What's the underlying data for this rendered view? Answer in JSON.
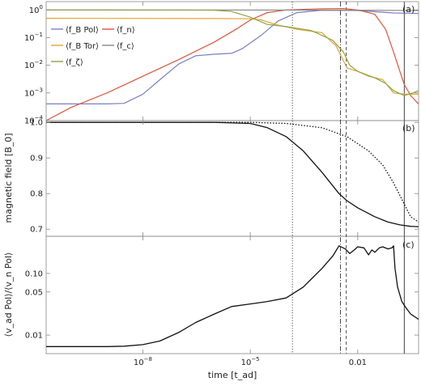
{
  "chart_data": {
    "type": "line",
    "xlabel": "time [t_ad]",
    "xscale": "log",
    "xlim": [
      2e-11,
      0.5
    ],
    "x_ticks": [
      {
        "value": 1e-08,
        "label": "10^-8"
      },
      {
        "value": 1e-05,
        "label": "10^-5"
      },
      {
        "value": 0.01,
        "label": "0.01"
      }
    ],
    "vertical_lines": [
      {
        "x": 0.00015,
        "style": "dotted"
      },
      {
        "x": 0.0033,
        "style": "dashdot"
      },
      {
        "x": 0.0048,
        "style": "dashed"
      },
      {
        "x": 0.2,
        "style": "solid"
      }
    ],
    "panels": [
      {
        "tag": "(a)",
        "ylabel": "",
        "yscale": "log",
        "ylim": [
          0.0001,
          2
        ],
        "y_ticks": [
          {
            "value": 1,
            "label": "10^0"
          },
          {
            "value": 0.1,
            "label": "10^-1"
          },
          {
            "value": 0.01,
            "label": "10^-2"
          },
          {
            "value": 0.001,
            "label": "10^-3"
          },
          {
            "value": 0.0001,
            "label": "10^-4"
          }
        ],
        "legend": [
          {
            "label": "⟨f_B Pol⟩",
            "color": "#7a7fc4"
          },
          {
            "label": "⟨f_n⟩",
            "color": "#e0563b"
          },
          {
            "label": "⟨f_B Tor⟩",
            "color": "#e3a435"
          },
          {
            "label": "⟨f_c⟩",
            "color": "#888888"
          },
          {
            "label": "⟨f_ζ⟩",
            "color": "#8aa646"
          }
        ],
        "series": [
          {
            "name": "⟨f_B Pol⟩",
            "color": "#7a7fc4",
            "points": [
              [
                2e-11,
                0.0004
              ],
              [
                1e-09,
                0.0004
              ],
              [
                3e-09,
                0.00042
              ],
              [
                1e-08,
                0.0009
              ],
              [
                3e-08,
                0.003
              ],
              [
                1e-07,
                0.011
              ],
              [
                3e-07,
                0.022
              ],
              [
                1e-06,
                0.025
              ],
              [
                3e-06,
                0.027
              ],
              [
                6e-06,
                0.04
              ],
              [
                2e-05,
                0.12
              ],
              [
                6e-05,
                0.4
              ],
              [
                0.0002,
                0.8
              ],
              [
                0.001,
                0.97
              ],
              [
                0.01,
                0.95
              ],
              [
                0.1,
                0.78
              ],
              [
                0.5,
                0.75
              ]
            ]
          },
          {
            "name": "⟨f_n⟩",
            "color": "#e0563b",
            "points": [
              [
                2e-11,
                0.0001
              ],
              [
                1e-10,
                0.0003
              ],
              [
                1e-09,
                0.001
              ],
              [
                1e-08,
                0.004
              ],
              [
                1e-07,
                0.016
              ],
              [
                1e-06,
                0.07
              ],
              [
                4e-06,
                0.2
              ],
              [
                1e-05,
                0.43
              ],
              [
                3e-05,
                0.8
              ],
              [
                0.0001,
                1.0
              ],
              [
                0.001,
                1.1
              ],
              [
                0.004,
                1.12
              ],
              [
                0.01,
                1.0
              ],
              [
                0.03,
                0.7
              ],
              [
                0.06,
                0.2
              ],
              [
                0.1,
                0.03
              ],
              [
                0.15,
                0.006
              ],
              [
                0.2,
                0.002
              ],
              [
                0.3,
                0.0008
              ],
              [
                0.5,
                0.0004
              ]
            ]
          },
          {
            "name": "⟨f_B Tor⟩",
            "color": "#e3a435",
            "points": [
              [
                2e-11,
                0.5
              ],
              [
                1e-06,
                0.49
              ],
              [
                1e-05,
                0.48
              ],
              [
                2e-05,
                0.44
              ],
              [
                5e-05,
                0.3
              ],
              [
                0.0002,
                0.2
              ],
              [
                0.001,
                0.15
              ],
              [
                0.0025,
                0.05
              ],
              [
                0.005,
                0.008
              ],
              [
                0.01,
                0.006
              ],
              [
                0.02,
                0.004
              ],
              [
                0.05,
                0.003
              ],
              [
                0.1,
                0.001
              ],
              [
                0.2,
                0.0009
              ],
              [
                0.5,
                0.0009
              ]
            ]
          },
          {
            "name": "⟨f_c⟩",
            "color": "#888888",
            "points": [
              [
                2e-11,
                1.0
              ],
              [
                1e-06,
                1.0
              ],
              [
                0.01,
                0.98
              ],
              [
                0.5,
                0.95
              ]
            ]
          },
          {
            "name": "⟨f_ζ⟩",
            "color": "#8aa646",
            "points": [
              [
                2e-11,
                1.0
              ],
              [
                1e-06,
                0.98
              ],
              [
                3e-06,
                0.88
              ],
              [
                1e-05,
                0.55
              ],
              [
                3e-05,
                0.3
              ],
              [
                0.0001,
                0.25
              ],
              [
                0.0005,
                0.18
              ],
              [
                0.002,
                0.08
              ],
              [
                0.004,
                0.03
              ],
              [
                0.006,
                0.01
              ],
              [
                0.01,
                0.006
              ],
              [
                0.03,
                0.0035
              ],
              [
                0.06,
                0.0022
              ],
              [
                0.1,
                0.0012
              ],
              [
                0.2,
                0.0008
              ],
              [
                0.35,
                0.001
              ],
              [
                0.5,
                0.0012
              ]
            ]
          }
        ]
      },
      {
        "tag": "(b)",
        "ylabel": "magnetic field [B_0]",
        "yscale": "linear",
        "ylim": [
          0.68,
          1.005
        ],
        "y_ticks": [
          {
            "value": 1.0,
            "label": "1.0"
          },
          {
            "value": 0.9,
            "label": "0.9"
          },
          {
            "value": 0.8,
            "label": "0.8"
          },
          {
            "value": 0.7,
            "label": "0.7"
          }
        ],
        "series": [
          {
            "style": "solid",
            "color": "#111111",
            "points": [
              [
                2e-11,
                1.0
              ],
              [
                1e-06,
                1.0
              ],
              [
                1e-05,
                0.997
              ],
              [
                3e-05,
                0.985
              ],
              [
                0.0001,
                0.96
              ],
              [
                0.0003,
                0.92
              ],
              [
                0.001,
                0.86
              ],
              [
                0.003,
                0.8
              ],
              [
                0.005,
                0.78
              ],
              [
                0.01,
                0.76
              ],
              [
                0.03,
                0.735
              ],
              [
                0.07,
                0.72
              ],
              [
                0.15,
                0.712
              ],
              [
                0.3,
                0.708
              ],
              [
                0.5,
                0.707
              ]
            ]
          },
          {
            "style": "dotted",
            "color": "#111111",
            "points": [
              [
                2e-11,
                1.0
              ],
              [
                1e-05,
                1.0
              ],
              [
                0.0001,
                0.997
              ],
              [
                0.001,
                0.985
              ],
              [
                0.005,
                0.96
              ],
              [
                0.02,
                0.92
              ],
              [
                0.05,
                0.88
              ],
              [
                0.1,
                0.83
              ],
              [
                0.2,
                0.77
              ],
              [
                0.3,
                0.735
              ],
              [
                0.5,
                0.72
              ]
            ]
          }
        ]
      },
      {
        "tag": "(c)",
        "ylabel": "⟨v_ad Pol⟩/⟨v_n Pol⟩",
        "yscale": "log",
        "ylim": [
          0.005,
          0.4
        ],
        "y_ticks": [
          {
            "value": 0.1,
            "label": "0.10"
          },
          {
            "value": 0.05,
            "label": "0.05"
          },
          {
            "value": 0.01,
            "label": "0.01"
          }
        ],
        "series": [
          {
            "style": "solid",
            "color": "#111111",
            "points": [
              [
                2e-11,
                0.0065
              ],
              [
                1e-09,
                0.0065
              ],
              [
                3e-09,
                0.0066
              ],
              [
                1e-08,
                0.007
              ],
              [
                3e-08,
                0.008
              ],
              [
                1e-07,
                0.011
              ],
              [
                3e-07,
                0.016
              ],
              [
                1e-06,
                0.022
              ],
              [
                3e-06,
                0.029
              ],
              [
                1e-05,
                0.032
              ],
              [
                3e-05,
                0.035
              ],
              [
                0.0001,
                0.04
              ],
              [
                0.0003,
                0.06
              ],
              [
                0.001,
                0.12
              ],
              [
                0.002,
                0.19
              ],
              [
                0.003,
                0.28
              ],
              [
                0.0045,
                0.25
              ],
              [
                0.006,
                0.21
              ],
              [
                0.008,
                0.24
              ],
              [
                0.01,
                0.27
              ],
              [
                0.015,
                0.26
              ],
              [
                0.02,
                0.2
              ],
              [
                0.025,
                0.24
              ],
              [
                0.03,
                0.22
              ],
              [
                0.04,
                0.26
              ],
              [
                0.05,
                0.27
              ],
              [
                0.07,
                0.25
              ],
              [
                0.09,
                0.26
              ],
              [
                0.1,
                0.28
              ],
              [
                0.11,
                0.12
              ],
              [
                0.13,
                0.06
              ],
              [
                0.17,
                0.035
              ],
              [
                0.22,
                0.028
              ],
              [
                0.3,
                0.022
              ],
              [
                0.5,
                0.018
              ]
            ]
          }
        ]
      }
    ]
  }
}
